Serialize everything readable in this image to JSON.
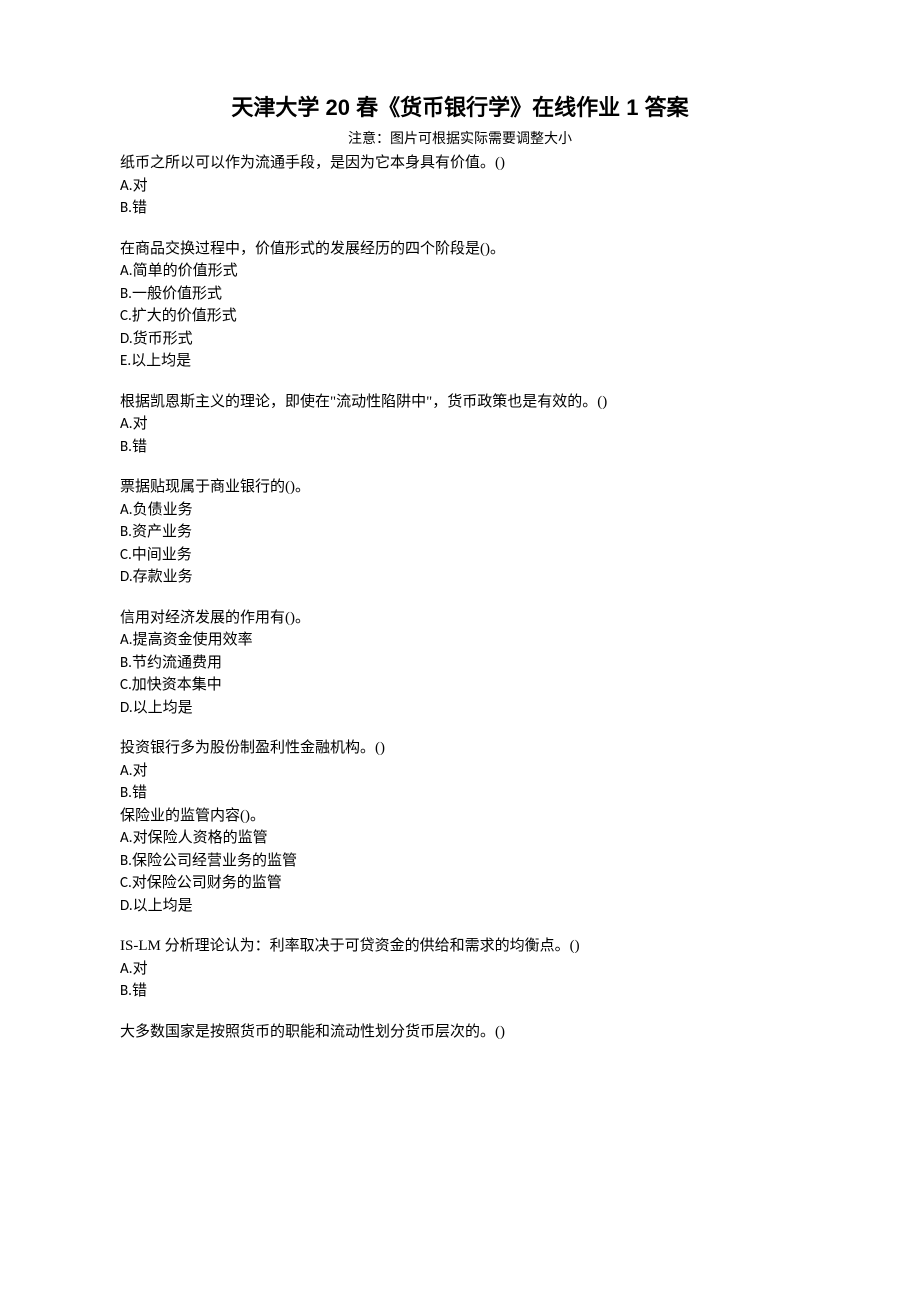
{
  "title": "天津大学 20 春《货币银行学》在线作业 1 答案",
  "subtitle": "注意：图片可根据实际需要调整大小",
  "questions": [
    {
      "text": "纸币之所以可以作为流通手段，是因为它本身具有价值。()",
      "options": [
        {
          "letter": "A.",
          "text": "对"
        },
        {
          "letter": "B.",
          "text": "错"
        }
      ]
    },
    {
      "text": "在商品交换过程中，价值形式的发展经历的四个阶段是()。",
      "options": [
        {
          "letter": "A.",
          "text": "简单的价值形式"
        },
        {
          "letter": "B.",
          "text": "一般价值形式"
        },
        {
          "letter": "C.",
          "text": "扩大的价值形式"
        },
        {
          "letter": "D.",
          "text": "货币形式"
        },
        {
          "letter": "E.",
          "text": "以上均是"
        }
      ]
    },
    {
      "text": "根据凯恩斯主义的理论，即使在\"流动性陷阱中\"，货币政策也是有效的。()",
      "options": [
        {
          "letter": "A.",
          "text": "对"
        },
        {
          "letter": "B.",
          "text": "错"
        }
      ]
    },
    {
      "text": "票据贴现属于商业银行的()。",
      "options": [
        {
          "letter": "A.",
          "text": "负债业务"
        },
        {
          "letter": "B.",
          "text": "资产业务"
        },
        {
          "letter": "C.",
          "text": "中间业务"
        },
        {
          "letter": "D.",
          "text": "存款业务"
        }
      ]
    },
    {
      "text": "信用对经济发展的作用有()。",
      "options": [
        {
          "letter": "A.",
          "text": "提高资金使用效率"
        },
        {
          "letter": "B.",
          "text": "节约流通费用"
        },
        {
          "letter": "C.",
          "text": "加快资本集中"
        },
        {
          "letter": "D.",
          "text": "以上均是"
        }
      ]
    },
    {
      "text": "投资银行多为股份制盈利性金融机构。()",
      "options": [
        {
          "letter": "A.",
          "text": "对"
        },
        {
          "letter": "B.",
          "text": "错"
        }
      ],
      "noMargin": true
    },
    {
      "text": "保险业的监管内容()。",
      "options": [
        {
          "letter": "A.",
          "text": "对保险人资格的监管"
        },
        {
          "letter": "B.",
          "text": "保险公司经营业务的监管"
        },
        {
          "letter": "C.",
          "text": "对保险公司财务的监管"
        },
        {
          "letter": "D.",
          "text": "以上均是"
        }
      ]
    },
    {
      "text": "IS-LM 分析理论认为：利率取决于可贷资金的供给和需求的均衡点。()",
      "options": [
        {
          "letter": "A.",
          "text": "对"
        },
        {
          "letter": "B.",
          "text": "错"
        }
      ]
    },
    {
      "text": "大多数国家是按照货币的职能和流动性划分货币层次的。()",
      "options": []
    }
  ]
}
